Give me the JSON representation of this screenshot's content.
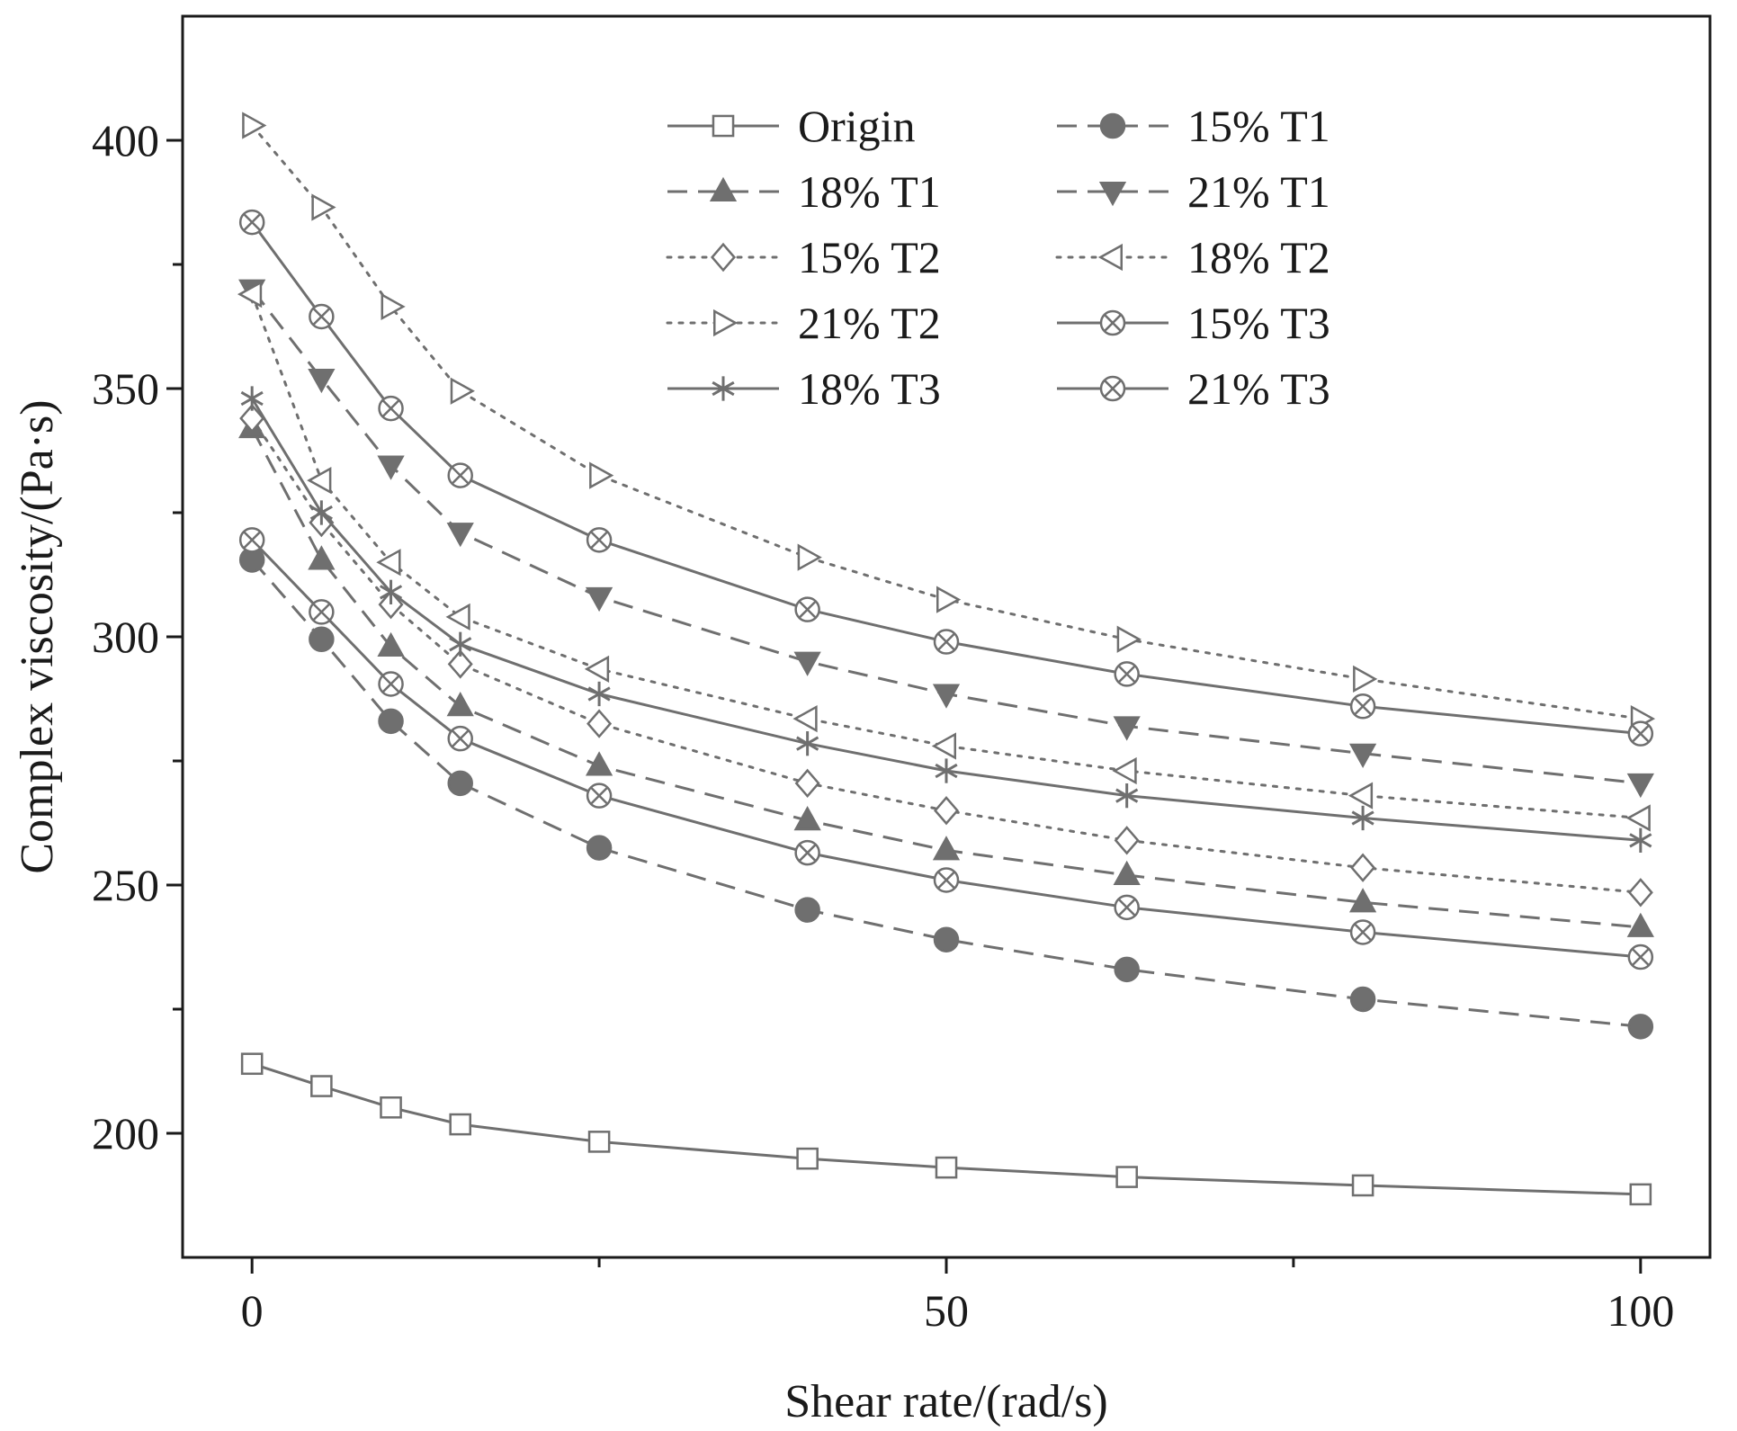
{
  "chart_data": {
    "type": "line",
    "title": "",
    "xlabel": "Shear rate/(rad/s)",
    "ylabel": "Complex viscosity/(Pa·s)",
    "xlim": [
      -5,
      105
    ],
    "ylim": [
      175,
      425
    ],
    "x_ticks": [
      0,
      50,
      100
    ],
    "x_minor_ticks": [
      25,
      75
    ],
    "y_ticks": [
      200,
      250,
      300,
      350,
      400
    ],
    "y_minor_ticks": [
      225,
      275,
      325,
      375
    ],
    "x": [
      0,
      5,
      10,
      15,
      25,
      40,
      50,
      63,
      80,
      100
    ],
    "legend_position": "top-right",
    "legend_columns": 2,
    "line_color": "#6f6f6f",
    "marker_color": "#6f6f6f",
    "series": [
      {
        "name": "Origin",
        "line": "solid",
        "marker": "square-open",
        "values": [
          214,
          209.5,
          205.2,
          201.8,
          198.3,
          194.9,
          193.1,
          191.2,
          189.5,
          187.7
        ]
      },
      {
        "name": "15% T1",
        "line": "dashed",
        "marker": "circle-filled",
        "values": [
          315.5,
          299.5,
          283,
          270.5,
          257.5,
          245,
          239,
          233,
          227,
          221.5
        ]
      },
      {
        "name": "18% T1",
        "line": "dashed",
        "marker": "triangle-up-filled",
        "values": [
          342,
          315.5,
          298,
          286,
          274,
          263,
          257,
          252,
          246.5,
          241.5
        ]
      },
      {
        "name": "21% T1",
        "line": "dashed",
        "marker": "triangle-down-filled",
        "values": [
          370,
          352,
          334.5,
          321,
          308,
          295,
          288.5,
          282,
          276.5,
          270.5
        ]
      },
      {
        "name": "15% T2",
        "line": "dotted",
        "marker": "diamond-open",
        "values": [
          344,
          323,
          306.5,
          294.5,
          282.5,
          270.5,
          265,
          259,
          253.5,
          248.5
        ]
      },
      {
        "name": "18% T2",
        "line": "dotted",
        "marker": "triangle-left-open",
        "values": [
          369,
          331.5,
          315,
          304,
          293.5,
          283.5,
          278,
          273,
          268,
          263.5
        ]
      },
      {
        "name": "21% T2",
        "line": "dotted",
        "marker": "triangle-right-open",
        "values": [
          403,
          386.5,
          366.5,
          349.5,
          332.5,
          316,
          307.5,
          299.5,
          291.5,
          283.5
        ]
      },
      {
        "name": "15% T3",
        "line": "solid",
        "marker": "circle-cross-open",
        "values": [
          319.5,
          305,
          290.5,
          279.5,
          268,
          256.5,
          251,
          245.5,
          240.5,
          235.5
        ]
      },
      {
        "name": "18% T3",
        "line": "solid",
        "marker": "star",
        "values": [
          348,
          325,
          309,
          298.5,
          288.5,
          278.5,
          273,
          268,
          263.5,
          259
        ]
      },
      {
        "name": "21% T3",
        "line": "solid",
        "marker": "circle-cross-open",
        "values": [
          383.5,
          364.5,
          346,
          332.5,
          319.5,
          305.5,
          299,
          292.5,
          286,
          280.5
        ]
      }
    ]
  }
}
